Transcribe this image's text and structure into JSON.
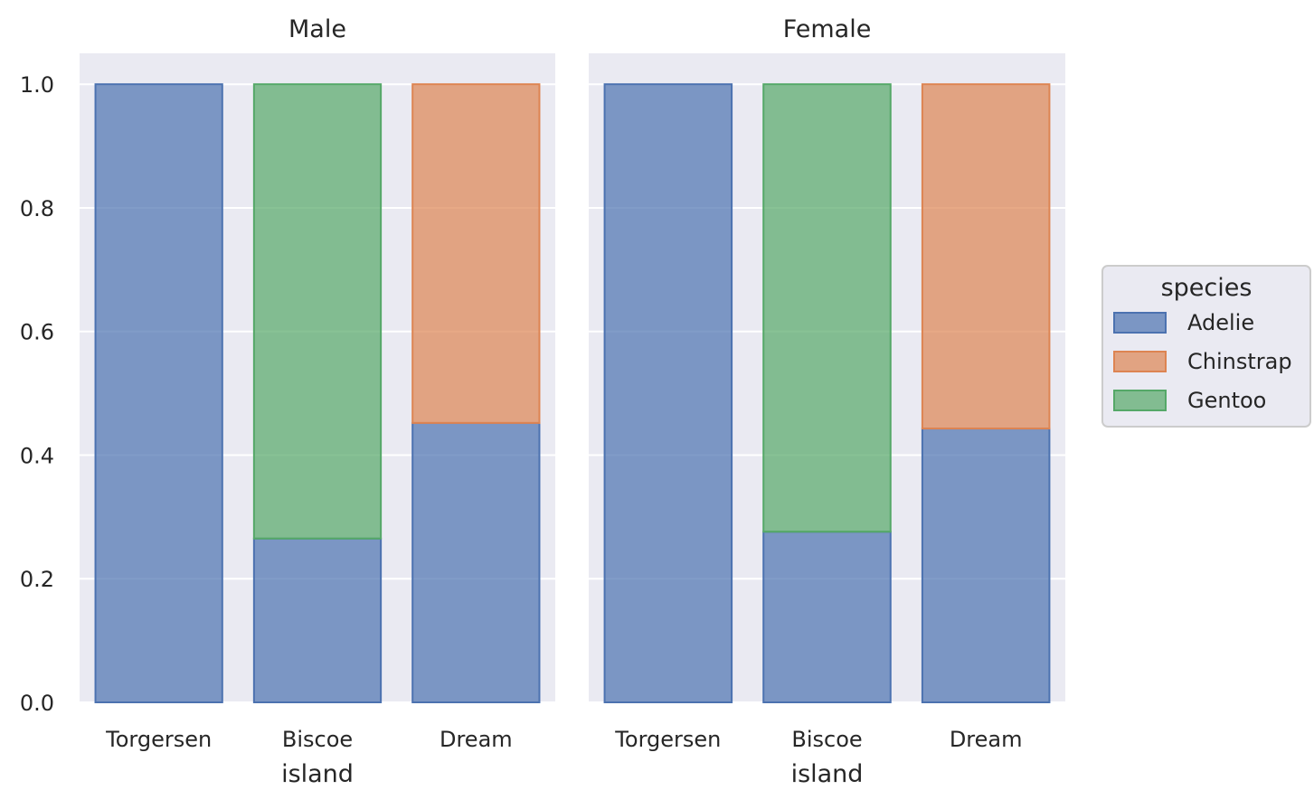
{
  "chart_data": {
    "type": "bar",
    "stacked": true,
    "facets": [
      {
        "title": "Male",
        "categories": [
          "Torgersen",
          "Biscoe",
          "Dream"
        ],
        "series": [
          {
            "name": "Adelie",
            "values": [
              1.0,
              0.265,
              0.452
            ]
          },
          {
            "name": "Chinstrap",
            "values": [
              0.0,
              0.0,
              0.548
            ]
          },
          {
            "name": "Gentoo",
            "values": [
              0.0,
              0.735,
              0.0
            ]
          }
        ]
      },
      {
        "title": "Female",
        "categories": [
          "Torgersen",
          "Biscoe",
          "Dream"
        ],
        "series": [
          {
            "name": "Adelie",
            "values": [
              1.0,
              0.276,
              0.443
            ]
          },
          {
            "name": "Chinstrap",
            "values": [
              0.0,
              0.0,
              0.557
            ]
          },
          {
            "name": "Gentoo",
            "values": [
              0.0,
              0.724,
              0.0
            ]
          }
        ]
      }
    ],
    "xlabel": "island",
    "ylabel": "",
    "ylim": [
      0,
      1.05
    ],
    "yticks": [
      0.0,
      0.2,
      0.4,
      0.6,
      0.8,
      1.0
    ],
    "ytick_labels": [
      "0.0",
      "0.2",
      "0.4",
      "0.6",
      "0.8",
      "1.0"
    ],
    "grid": true,
    "legend": {
      "title": "species",
      "placement": "right",
      "entries": [
        "Adelie",
        "Chinstrap",
        "Gentoo"
      ]
    },
    "colors": {
      "Adelie": "#4c72b0",
      "Chinstrap": "#dd8452",
      "Gentoo": "#55a868",
      "panel_background": "#eaeaf2",
      "grid": "#ffffff"
    }
  }
}
